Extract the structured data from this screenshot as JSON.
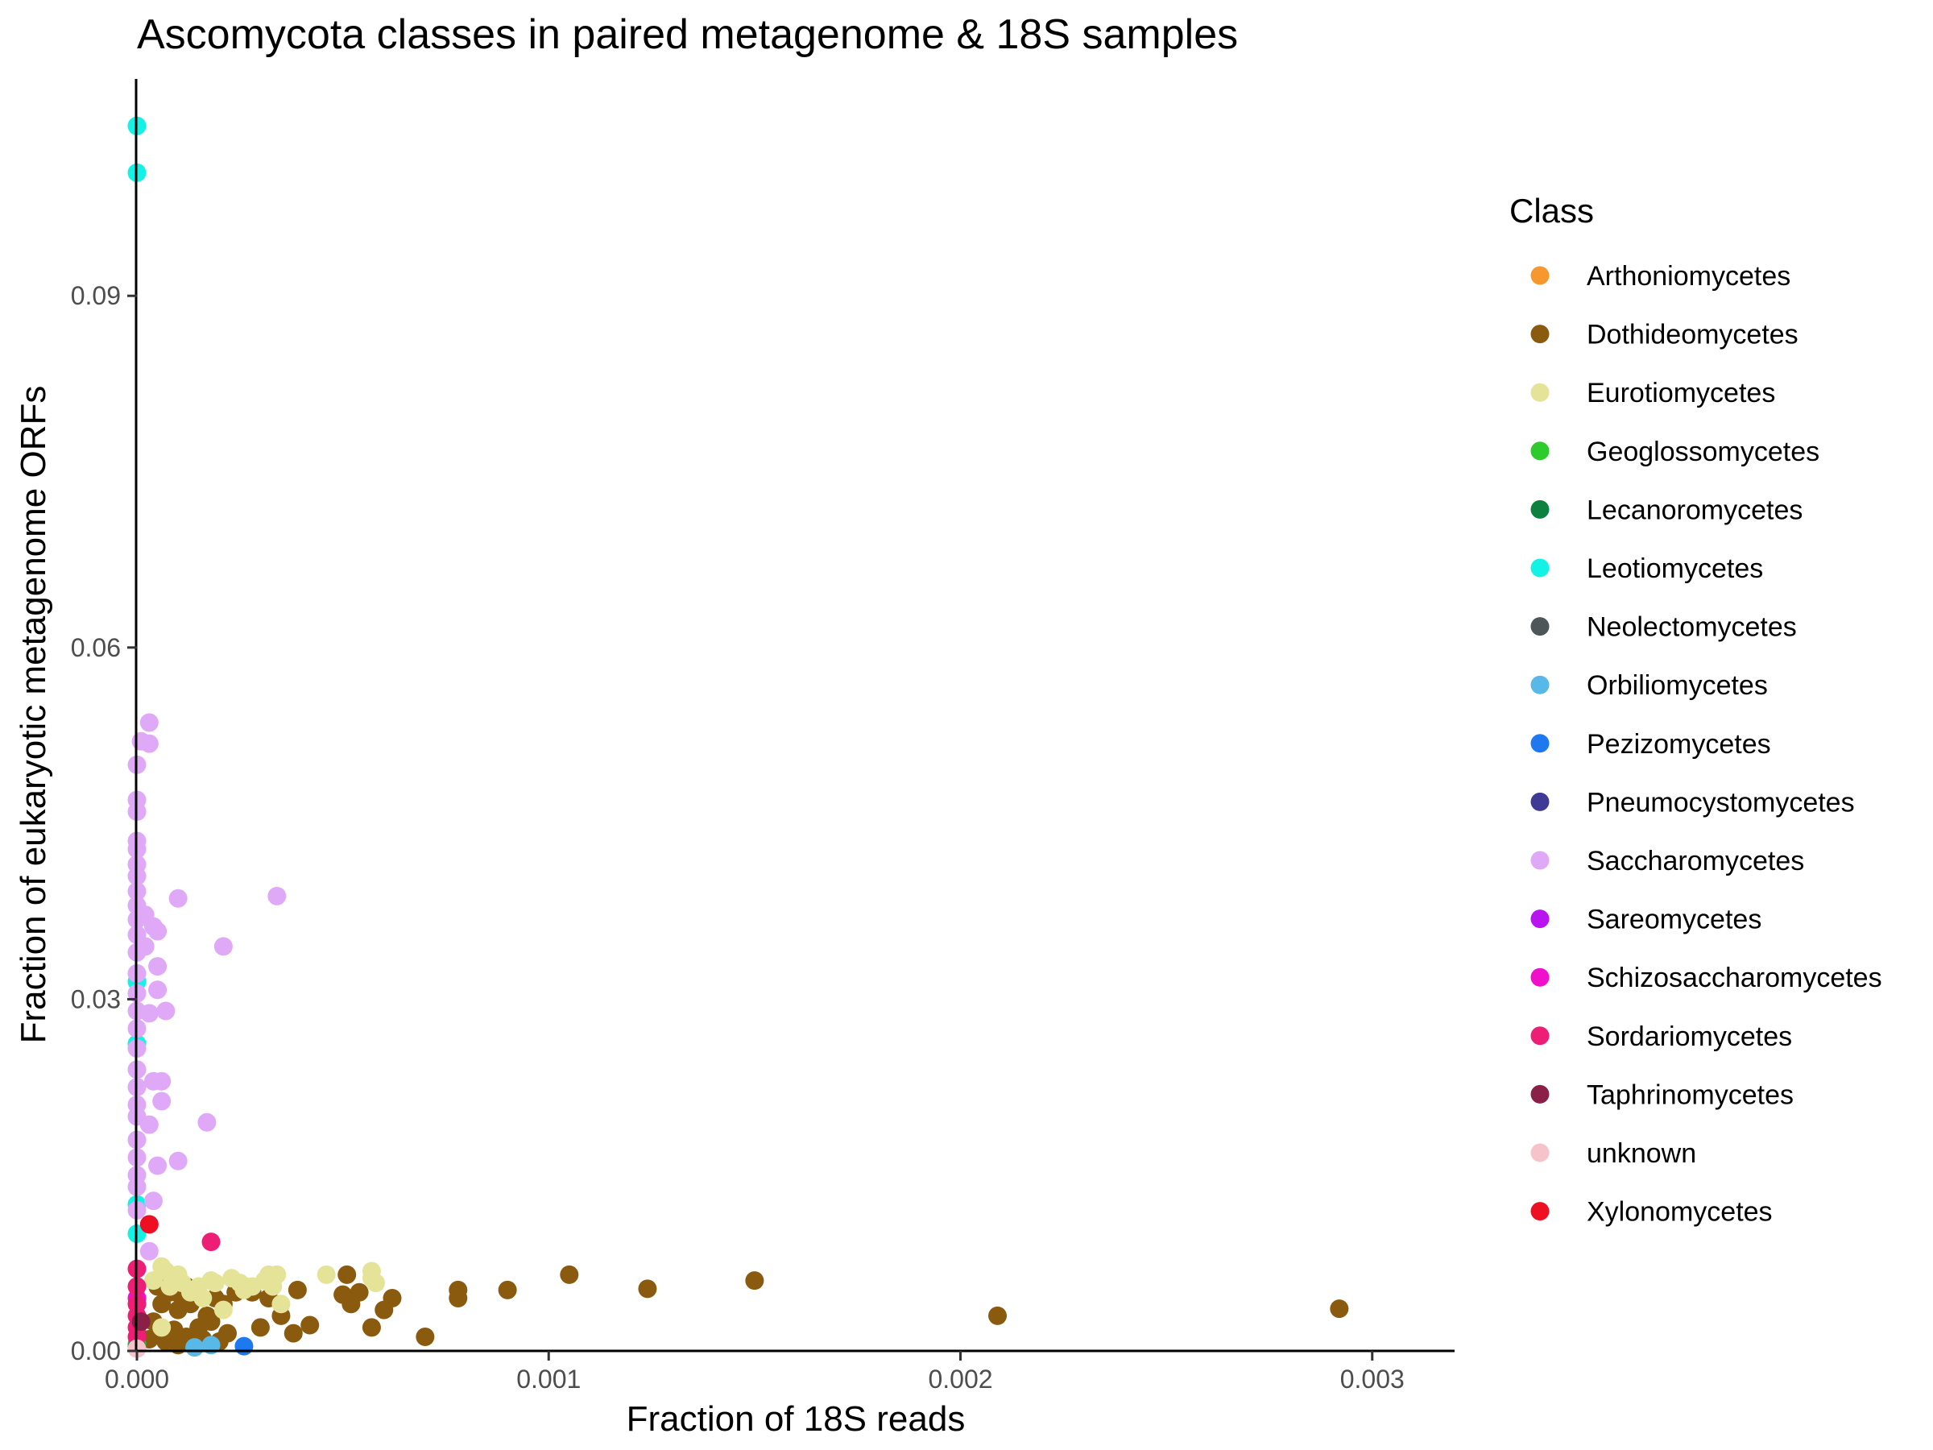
{
  "chart_data": {
    "type": "scatter",
    "title": "Ascomycota classes in paired metagenome & 18S samples",
    "xlabel": "Fraction of 18S reads",
    "ylabel": "Fraction of eukaryotic metagenome ORFs",
    "xlim": [
      0,
      0.0032
    ],
    "ylim": [
      0,
      0.1085
    ],
    "x_ticks": [
      0,
      0.001,
      0.002,
      0.003
    ],
    "x_tick_labels": [
      "0.000",
      "0.001",
      "0.002",
      "0.003"
    ],
    "y_ticks": [
      0,
      0.03,
      0.06,
      0.09
    ],
    "y_tick_labels": [
      "0.00",
      "0.03",
      "0.06",
      "0.09"
    ],
    "grid": false,
    "legend_title": "Class",
    "legend_position": "right",
    "series": [
      {
        "name": "Arthoniomycetes",
        "color": "#F7982E",
        "points": []
      },
      {
        "name": "Dothideomycetes",
        "color": "#8A5A0E",
        "points": [
          [
            5e-05,
            0.0055
          ],
          [
            6e-05,
            0.004
          ],
          [
            8e-05,
            0.005
          ],
          [
            9e-05,
            0.006
          ],
          [
            0.0001,
            0.0035
          ],
          [
            0.00011,
            0.0045
          ],
          [
            0.00012,
            0.0055
          ],
          [
            0.00013,
            0.004
          ],
          [
            0.00015,
            0.002
          ],
          [
            0.00017,
            0.003
          ],
          [
            0.00019,
            0.0045
          ],
          [
            0.00021,
            0.004
          ],
          [
            0.00022,
            0.0015
          ],
          [
            0.00024,
            0.005
          ],
          [
            0.00026,
            0.0055
          ],
          [
            0.00028,
            0.005
          ],
          [
            0.0003,
            0.002
          ],
          [
            0.00032,
            0.0045
          ],
          [
            0.00035,
            0.003
          ],
          [
            0.00038,
            0.0015
          ],
          [
            0.00039,
            0.0052
          ],
          [
            0.00042,
            0.0022
          ],
          [
            0.0005,
            0.0048
          ],
          [
            0.00051,
            0.0065
          ],
          [
            0.00052,
            0.004
          ],
          [
            0.00054,
            0.005
          ],
          [
            0.00057,
            0.002
          ],
          [
            0.0006,
            0.0035
          ],
          [
            0.00062,
            0.0045
          ],
          [
            0.0007,
            0.0012
          ],
          [
            0.00078,
            0.0052
          ],
          [
            0.00078,
            0.0045
          ],
          [
            0.0009,
            0.0052
          ],
          [
            0.00105,
            0.0065
          ],
          [
            0.00124,
            0.0053
          ],
          [
            0.0015,
            0.006
          ],
          [
            0.00209,
            0.003
          ],
          [
            0.00292,
            0.0036
          ],
          [
            3e-05,
            0.001
          ],
          [
            4e-05,
            0.0025
          ],
          [
            7e-05,
            0.0008
          ],
          [
            9e-05,
            0.0018
          ],
          [
            0.0001,
            0.0005
          ],
          [
            0.00012,
            0.0012
          ],
          [
            0.00014,
            0.0005
          ],
          [
            0.00016,
            0.001
          ],
          [
            0.00018,
            0.0025
          ],
          [
            0.0002,
            0.0008
          ]
        ]
      },
      {
        "name": "Eurotiomycetes",
        "color": "#E5E397",
        "points": [
          [
            4e-05,
            0.006
          ],
          [
            6e-05,
            0.0072
          ],
          [
            7e-05,
            0.0068
          ],
          [
            8e-05,
            0.0055
          ],
          [
            0.0001,
            0.0065
          ],
          [
            0.00011,
            0.0058
          ],
          [
            0.00013,
            0.005
          ],
          [
            0.00015,
            0.0055
          ],
          [
            0.00016,
            0.0045
          ],
          [
            0.00018,
            0.006
          ],
          [
            0.00019,
            0.0058
          ],
          [
            0.00021,
            0.0035
          ],
          [
            0.00023,
            0.0062
          ],
          [
            0.00025,
            0.0058
          ],
          [
            0.00026,
            0.0052
          ],
          [
            0.00028,
            0.0055
          ],
          [
            0.00031,
            0.006
          ],
          [
            0.00032,
            0.0065
          ],
          [
            0.00033,
            0.0055
          ],
          [
            0.00034,
            0.0065
          ],
          [
            0.00035,
            0.004
          ],
          [
            0.00046,
            0.0065
          ],
          [
            0.00057,
            0.0068
          ],
          [
            0.00057,
            0.0062
          ],
          [
            0.00058,
            0.0058
          ],
          [
            6e-05,
            0.002
          ]
        ]
      },
      {
        "name": "Geoglossomycetes",
        "color": "#2DCB2E",
        "points": [
          [
            0.0,
            0.0006
          ]
        ]
      },
      {
        "name": "Lecanoromycetes",
        "color": "#0E8140",
        "points": [
          [
            0.0,
            0.0003
          ]
        ]
      },
      {
        "name": "Leotiomycetes",
        "color": "#14F1E5",
        "points": [
          [
            0.0,
            0.1045
          ],
          [
            0.0,
            0.1005
          ],
          [
            0.0,
            0.0315
          ],
          [
            0.0,
            0.0262
          ],
          [
            0.0,
            0.0125
          ],
          [
            0.0,
            0.01
          ]
        ]
      },
      {
        "name": "Neolectomycetes",
        "color": "#4D5659",
        "points": []
      },
      {
        "name": "Orbiliomycetes",
        "color": "#58B8E8",
        "points": [
          [
            0.00014,
            0.0003
          ],
          [
            0.00018,
            0.0005
          ]
        ]
      },
      {
        "name": "Pezizomycetes",
        "color": "#1E78F0",
        "points": [
          [
            0.00026,
            0.0004
          ]
        ]
      },
      {
        "name": "Pneumocystomycetes",
        "color": "#3E3A96",
        "points": []
      },
      {
        "name": "Saccharomycetes",
        "color": "#DFA9F8",
        "points": [
          [
            0.0,
            0.05
          ],
          [
            0.0,
            0.047
          ],
          [
            0.0,
            0.046
          ],
          [
            0.0,
            0.0435
          ],
          [
            0.0,
            0.0428
          ],
          [
            0.0,
            0.0415
          ],
          [
            0.0,
            0.0405
          ],
          [
            0.0,
            0.0392
          ],
          [
            0.0,
            0.038
          ],
          [
            0.0,
            0.0368
          ],
          [
            0.0,
            0.0355
          ],
          [
            0.0,
            0.034
          ],
          [
            0.0,
            0.0322
          ],
          [
            0.0,
            0.0305
          ],
          [
            0.0,
            0.029
          ],
          [
            0.0,
            0.0275
          ],
          [
            0.0,
            0.0258
          ],
          [
            0.0,
            0.024
          ],
          [
            0.0,
            0.0225
          ],
          [
            0.0,
            0.021
          ],
          [
            0.0,
            0.02
          ],
          [
            0.0,
            0.018
          ],
          [
            0.0,
            0.0165
          ],
          [
            0.0,
            0.015
          ],
          [
            0.0,
            0.014
          ],
          [
            0.0,
            0.012
          ],
          [
            3e-05,
            0.0536
          ],
          [
            3e-05,
            0.0518
          ],
          [
            1e-05,
            0.052
          ],
          [
            0.0001,
            0.0386
          ],
          [
            0.00034,
            0.0388
          ],
          [
            0.00021,
            0.0345
          ],
          [
            2e-05,
            0.0372
          ],
          [
            4e-05,
            0.0362
          ],
          [
            5e-05,
            0.0358
          ],
          [
            5e-05,
            0.0328
          ],
          [
            5e-05,
            0.0308
          ],
          [
            7e-05,
            0.029
          ],
          [
            3e-05,
            0.0288
          ],
          [
            2e-05,
            0.0345
          ],
          [
            6e-05,
            0.023
          ],
          [
            4e-05,
            0.023
          ],
          [
            6e-05,
            0.0213
          ],
          [
            3e-05,
            0.0193
          ],
          [
            0.00017,
            0.0195
          ],
          [
            0.0001,
            0.0162
          ],
          [
            5e-05,
            0.0158
          ],
          [
            4e-05,
            0.0128
          ],
          [
            3e-05,
            0.0085
          ]
        ]
      },
      {
        "name": "Sareomycetes",
        "color": "#B914F0",
        "points": []
      },
      {
        "name": "Schizosaccharomycetes",
        "color": "#F00FCB",
        "points": [
          [
            0.0,
            0.0045
          ]
        ]
      },
      {
        "name": "Sordariomycetes",
        "color": "#EE1E76",
        "points": [
          [
            0.00018,
            0.0093
          ],
          [
            0.0,
            0.007
          ],
          [
            0.0,
            0.0055
          ],
          [
            0.0,
            0.004
          ],
          [
            0.0,
            0.003
          ],
          [
            0.0,
            0.002
          ],
          [
            0.0,
            0.0012
          ]
        ]
      },
      {
        "name": "Taphrinomycetes",
        "color": "#8A1F48",
        "points": [
          [
            1e-05,
            0.0025
          ]
        ]
      },
      {
        "name": "unknown",
        "color": "#F7C3CB",
        "points": [
          [
            0.0,
            0.0002
          ]
        ]
      },
      {
        "name": "Xylonomycetes",
        "color": "#EE0F23",
        "points": [
          [
            3e-05,
            0.0108
          ]
        ]
      }
    ]
  }
}
